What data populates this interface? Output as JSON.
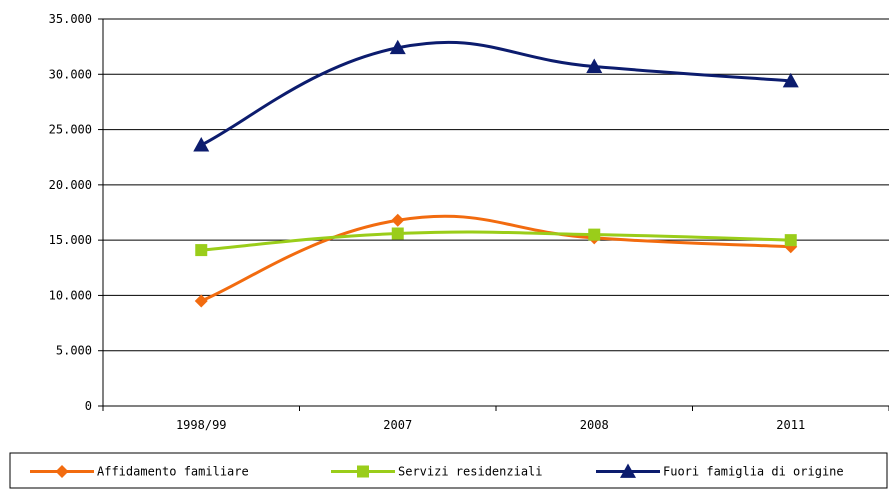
{
  "chart_data": {
    "type": "line",
    "title": "",
    "xlabel": "",
    "ylabel": "",
    "categories": [
      "1998/99",
      "2007",
      "2008",
      "2011"
    ],
    "ylim": [
      0,
      35000
    ],
    "yticks": [
      0,
      5000,
      10000,
      15000,
      20000,
      25000,
      30000,
      35000
    ],
    "ytick_labels": [
      "0",
      "5.000",
      "10.000",
      "15.000",
      "20.000",
      "25.000",
      "30.000",
      "35.000"
    ],
    "grid": "horizontal",
    "smooth": true,
    "legend": "bottom",
    "series": [
      {
        "name": "Affidamento familiare",
        "values": [
          9500,
          16800,
          15200,
          14400
        ],
        "color": "#f26b0f",
        "marker": "diamond"
      },
      {
        "name": "Servizi residenziali",
        "values": [
          14100,
          15600,
          15500,
          15000
        ],
        "color": "#9acd1a",
        "marker": "square"
      },
      {
        "name": "Fuori famiglia di origine",
        "values": [
          23600,
          32400,
          30700,
          29400
        ],
        "color": "#0c1c6e",
        "marker": "triangle"
      }
    ]
  }
}
